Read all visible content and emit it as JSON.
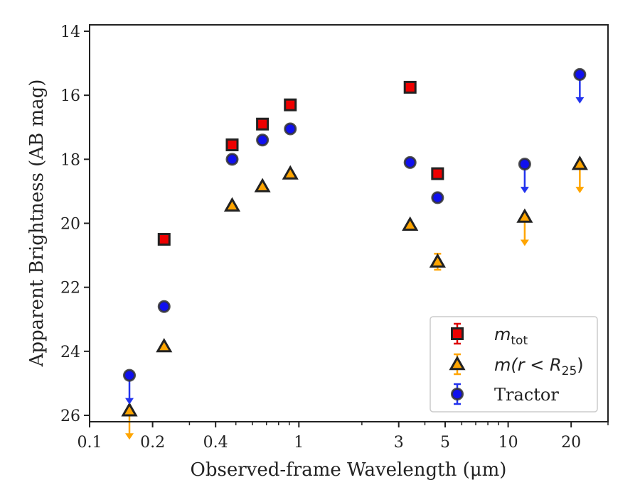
{
  "chart_data": {
    "type": "scatter",
    "xlabel": "Observed-frame Wavelength (μm)",
    "ylabel": "Apparent Brightness (AB mag)",
    "xscale": "log",
    "xlim": [
      0.1,
      30
    ],
    "ylim": [
      26.2,
      13.8
    ],
    "y_inverted": true,
    "x_ticks": [
      {
        "value": 0.1,
        "label": "0.1"
      },
      {
        "value": 0.2,
        "label": "0.2"
      },
      {
        "value": 0.4,
        "label": "0.4"
      },
      {
        "value": 1,
        "label": "1"
      },
      {
        "value": 3,
        "label": "3"
      },
      {
        "value": 5,
        "label": "5"
      },
      {
        "value": 10,
        "label": "10"
      },
      {
        "value": 20,
        "label": "20"
      }
    ],
    "x_minor_ticks": [
      0.3,
      0.5,
      0.6,
      0.7,
      0.8,
      0.9,
      2,
      4,
      6,
      7,
      8,
      9,
      30
    ],
    "y_ticks": [
      {
        "value": 14,
        "label": "14"
      },
      {
        "value": 16,
        "label": "16"
      },
      {
        "value": 18,
        "label": "18"
      },
      {
        "value": 20,
        "label": "20"
      },
      {
        "value": 22,
        "label": "22"
      },
      {
        "value": 24,
        "label": "24"
      },
      {
        "value": 26,
        "label": "26"
      }
    ],
    "legend_position": "lower-right",
    "series": [
      {
        "name": "m_tot",
        "legend_math": "m",
        "legend_sub": "tot",
        "marker": "square",
        "face_color": "#ee0000",
        "edge_color": "#222222",
        "errorbar_color": "#dd0000",
        "points": [
          {
            "x": 0.227,
            "y": 20.5
          },
          {
            "x": 0.48,
            "y": 17.55
          },
          {
            "x": 0.67,
            "y": 16.9
          },
          {
            "x": 0.91,
            "y": 16.3
          },
          {
            "x": 3.4,
            "y": 15.75
          },
          {
            "x": 4.6,
            "y": 18.45
          }
        ]
      },
      {
        "name": "m(r < R_25)",
        "legend_math": "m(r < R",
        "legend_sub": "25",
        "legend_close": ")",
        "marker": "triangle",
        "face_color": "#ffa500",
        "edge_color": "#222222",
        "errorbar_color": "#ffa500",
        "points": [
          {
            "x": 0.155,
            "y": 25.85,
            "upper_limit": true
          },
          {
            "x": 0.227,
            "y": 23.85
          },
          {
            "x": 0.48,
            "y": 19.45
          },
          {
            "x": 0.67,
            "y": 18.85
          },
          {
            "x": 0.91,
            "y": 18.45
          },
          {
            "x": 3.4,
            "y": 20.05
          },
          {
            "x": 4.6,
            "y": 21.2,
            "yerr": 0.25
          },
          {
            "x": 12.0,
            "y": 19.8,
            "upper_limit": true
          },
          {
            "x": 22.0,
            "y": 18.15,
            "upper_limit": true
          }
        ]
      },
      {
        "name": "Tractor",
        "marker": "circle",
        "face_color": "#1010ee",
        "edge_color": "#333333",
        "errorbar_color": "#2233ee",
        "points": [
          {
            "x": 0.155,
            "y": 24.75,
            "upper_limit": true
          },
          {
            "x": 0.227,
            "y": 22.6
          },
          {
            "x": 0.48,
            "y": 18.0
          },
          {
            "x": 0.67,
            "y": 17.4
          },
          {
            "x": 0.91,
            "y": 17.05
          },
          {
            "x": 3.4,
            "y": 18.1
          },
          {
            "x": 4.6,
            "y": 19.2
          },
          {
            "x": 12.0,
            "y": 18.15,
            "upper_limit": true
          },
          {
            "x": 22.0,
            "y": 15.35,
            "upper_limit": true
          }
        ]
      }
    ]
  }
}
